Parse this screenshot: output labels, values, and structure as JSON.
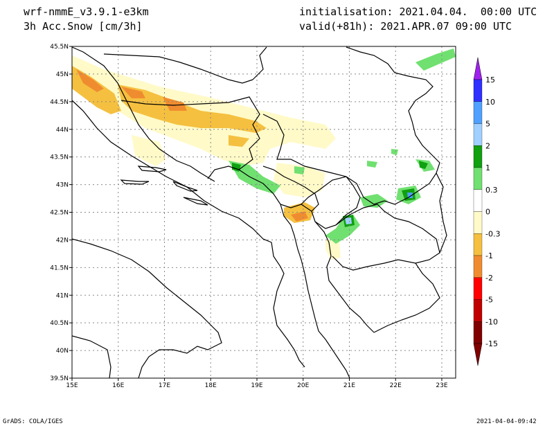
{
  "header": {
    "model": "wrf-nmmE_v3.9.1-e3km",
    "field": "3h Acc.Snow [cm/3h]",
    "init": "initialisation: 2021.04.04.  00:00 UTC",
    "valid": "valid(+81h): 2021.APR.07 09:00 UTC"
  },
  "footer": {
    "credit": "GrADS: COLA/IGES",
    "timestamp": "2021-04-04-09:42"
  },
  "map": {
    "lon_range": [
      15,
      23.3
    ],
    "lat_range": [
      39.5,
      45.5
    ],
    "x_ticks": [
      "15E",
      "16E",
      "17E",
      "18E",
      "19E",
      "20E",
      "21E",
      "22E",
      "23E"
    ],
    "x_tick_values": [
      15,
      16,
      17,
      18,
      19,
      20,
      21,
      22,
      23
    ],
    "y_ticks": [
      "39.5N",
      "40N",
      "40.5N",
      "41N",
      "41.5N",
      "42N",
      "42.5N",
      "43N",
      "43.5N",
      "44N",
      "44.5N",
      "45N",
      "45.5N"
    ],
    "y_tick_values": [
      39.5,
      40,
      40.5,
      41,
      41.5,
      42,
      42.5,
      43,
      43.5,
      44,
      44.5,
      45,
      45.5
    ],
    "grid": true
  },
  "legend": {
    "labels": [
      "15",
      "10",
      "5",
      "2",
      "1",
      "0.3",
      "0",
      "-0.3",
      "-1",
      "-2",
      "-5",
      "-10",
      "-15"
    ],
    "colors": [
      "#a020f0",
      "#3030ff",
      "#50a0ff",
      "#a0d0ff",
      "#10a010",
      "#70e070",
      "#ffffff",
      "#fffac8",
      "#f5c040",
      "#f08c30",
      "#ff0000",
      "#c00000",
      "#800000"
    ],
    "top_arrow": "#a020f0",
    "bottom_arrow": "#800000"
  },
  "snow_colors": {
    "light": "#fffac8",
    "medium": "#f5c040",
    "heavy": "#f08c30",
    "green_light": "#70e070",
    "green_dark": "#10a010",
    "blue_light": "#a0d0ff",
    "blue_mid": "#50a0ff"
  }
}
